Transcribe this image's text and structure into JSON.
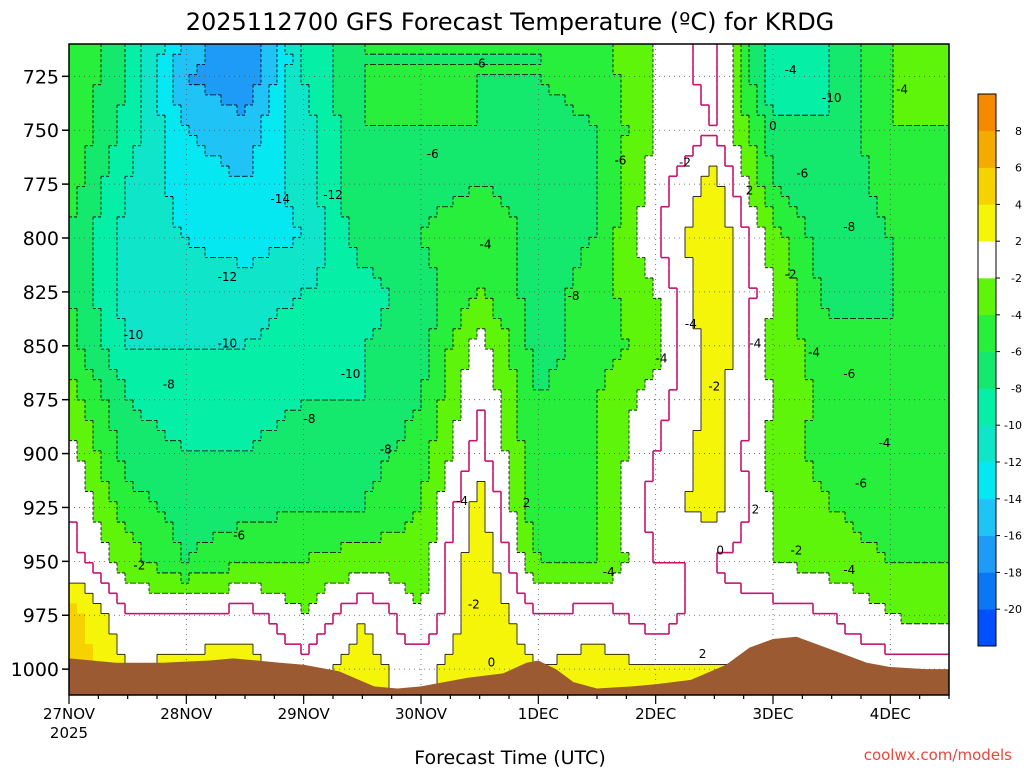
{
  "chart_data": {
    "type": "heatmap",
    "title": "2025112700 GFS Forecast Temperature (ºC) for KRDG",
    "xlabel": "Forecast Time (UTC)",
    "ylabel": "",
    "credit": "coolwx.com/models",
    "x_ticks": [
      "27NOV",
      "28NOV",
      "29NOV",
      "30NOV",
      "1DEC",
      "2DEC",
      "3DEC",
      "4DEC"
    ],
    "x_year": "2025",
    "x_range_days": [
      0,
      7.5
    ],
    "y_ticks": [
      725,
      750,
      775,
      800,
      825,
      850,
      875,
      900,
      925,
      950,
      975,
      1000
    ],
    "y_range_hpa": [
      1012,
      710
    ],
    "grid": true,
    "colorbar": {
      "levels": [
        -22,
        -20,
        -18,
        -16,
        -14,
        -12,
        -10,
        -8,
        -6,
        -4,
        -2,
        2,
        4,
        6,
        8,
        10
      ],
      "tick_labels": [
        "-20",
        "-18",
        "-16",
        "-14",
        "-12",
        "-10",
        "-8",
        "-6",
        "-4",
        "-2",
        "2",
        "4",
        "6",
        "8"
      ],
      "colors": [
        "#0050ff",
        "#0a78f5",
        "#1e9bf6",
        "#20c3f6",
        "#05e8f2",
        "#0fe6c9",
        "#05f0a6",
        "#14e86d",
        "#28ee3c",
        "#5ef50a",
        "#ffffff",
        "#f5f50a",
        "#f5d200",
        "#f5aa00",
        "#f58a00"
      ]
    },
    "temperature_grid": {
      "times_days": [
        0,
        0.5,
        1,
        1.5,
        2,
        2.5,
        3,
        3.5,
        4,
        4.5,
        5,
        5.5,
        6,
        6.5,
        7,
        7.5
      ],
      "levels_hpa": [
        715,
        725,
        750,
        775,
        800,
        825,
        850,
        875,
        900,
        925,
        950,
        975,
        1000
      ],
      "values_c": [
        [
          -4,
          -8,
          -15,
          -18,
          -10,
          -6,
          -6,
          -6,
          -6,
          -5,
          -2,
          1,
          -10,
          -8,
          -4,
          -4
        ],
        [
          -4,
          -8,
          -16,
          -18,
          -10,
          -6,
          -6,
          -6,
          -6,
          -5,
          -2,
          1,
          -10,
          -8,
          -4,
          -4
        ],
        [
          -4,
          -9,
          -14,
          -15,
          -11,
          -6,
          -6,
          -6,
          -7,
          -6,
          -2,
          0,
          -7,
          -8,
          -4,
          -4
        ],
        [
          -5,
          -10,
          -13,
          -14,
          -11,
          -6,
          -7,
          -6,
          -7,
          -6,
          -1,
          3,
          -6,
          -8,
          -5,
          -5
        ],
        [
          -6,
          -11,
          -12,
          -13,
          -12,
          -7,
          -6,
          -4,
          -7,
          -6,
          0,
          4,
          -3,
          -8,
          -6,
          -5
        ],
        [
          -6,
          -11,
          -11,
          -11,
          -10,
          -9,
          -7,
          -4,
          -7,
          -5,
          -2,
          4,
          -2,
          -7,
          -6,
          -5
        ],
        [
          -5,
          -10,
          -10,
          -10,
          -9,
          -8,
          -7,
          -1,
          -7,
          -5,
          -3,
          4,
          -3,
          -5,
          -6,
          -4
        ],
        [
          -3,
          -8,
          -9,
          -9,
          -8,
          -8,
          -6,
          0,
          -6,
          -4,
          -1,
          3,
          -2,
          -5,
          -6,
          -4
        ],
        [
          -1,
          -7,
          -8,
          -8,
          -7,
          -7,
          -5,
          1,
          -6,
          -4,
          0,
          3,
          -3,
          -5,
          -5,
          -4
        ],
        [
          0,
          -5,
          -7,
          -7,
          -6,
          -6,
          -4,
          3,
          -6,
          -4,
          1,
          3,
          -2,
          -4,
          -5,
          -4
        ],
        [
          1,
          -3,
          -6,
          -4,
          -4,
          -3,
          -3,
          4,
          -4,
          -4,
          0,
          0,
          -2,
          -3,
          -4,
          -4
        ],
        [
          5,
          0,
          0,
          1,
          -2,
          2,
          -2,
          4,
          0,
          1,
          -1,
          1,
          1,
          0,
          -2,
          -3
        ],
        [
          6,
          2,
          3,
          3,
          1,
          3,
          1,
          4,
          2,
          3,
          2,
          2,
          2,
          2,
          1,
          1
        ]
      ]
    },
    "surface_pressure_hpa": [
      [
        0,
        995
      ],
      [
        0.4,
        997
      ],
      [
        0.8,
        997
      ],
      [
        1.2,
        996
      ],
      [
        1.4,
        995
      ],
      [
        1.8,
        997
      ],
      [
        2.0,
        998
      ],
      [
        2.3,
        1001
      ],
      [
        2.6,
        1008
      ],
      [
        2.8,
        1009
      ],
      [
        3.0,
        1008
      ],
      [
        3.4,
        1004
      ],
      [
        3.7,
        1002
      ],
      [
        3.9,
        997
      ],
      [
        4.0,
        996
      ],
      [
        4.15,
        1000
      ],
      [
        4.3,
        1006
      ],
      [
        4.5,
        1009
      ],
      [
        4.8,
        1008
      ],
      [
        5.0,
        1007
      ],
      [
        5.3,
        1005
      ],
      [
        5.6,
        998
      ],
      [
        5.8,
        990
      ],
      [
        6.0,
        986
      ],
      [
        6.2,
        985
      ],
      [
        6.4,
        989
      ],
      [
        6.6,
        993
      ],
      [
        6.8,
        997
      ],
      [
        7.0,
        999
      ],
      [
        7.3,
        1000
      ],
      [
        7.5,
        1000
      ]
    ],
    "contour_labels": [
      {
        "x": 3.5,
        "y": 719,
        "t": "-6"
      },
      {
        "x": 6.15,
        "y": 722,
        "t": "-4"
      },
      {
        "x": 6.5,
        "y": 735,
        "t": "-10"
      },
      {
        "x": 7.1,
        "y": 731,
        "t": "-4"
      },
      {
        "x": 6.0,
        "y": 748,
        "t": "0"
      },
      {
        "x": 3.1,
        "y": 761,
        "t": "-6"
      },
      {
        "x": 4.7,
        "y": 764,
        "t": "-6"
      },
      {
        "x": 5.25,
        "y": 765,
        "t": "-2"
      },
      {
        "x": 6.25,
        "y": 770,
        "t": "-6"
      },
      {
        "x": 5.8,
        "y": 778,
        "t": "2"
      },
      {
        "x": 1.8,
        "y": 782,
        "t": "-14"
      },
      {
        "x": 2.25,
        "y": 780,
        "t": "-12"
      },
      {
        "x": 6.65,
        "y": 795,
        "t": "-8"
      },
      {
        "x": 3.55,
        "y": 803,
        "t": "-4"
      },
      {
        "x": 1.35,
        "y": 818,
        "t": "-12"
      },
      {
        "x": 6.15,
        "y": 817,
        "t": "-2"
      },
      {
        "x": 4.3,
        "y": 827,
        "t": "-8"
      },
      {
        "x": 0.55,
        "y": 845,
        "t": "-10"
      },
      {
        "x": 1.35,
        "y": 849,
        "t": "-10"
      },
      {
        "x": 5.3,
        "y": 840,
        "t": "-4"
      },
      {
        "x": 5.85,
        "y": 849,
        "t": "-4"
      },
      {
        "x": 5.05,
        "y": 856,
        "t": "-4"
      },
      {
        "x": 6.35,
        "y": 853,
        "t": "-4"
      },
      {
        "x": 2.4,
        "y": 863,
        "t": "-10"
      },
      {
        "x": 6.65,
        "y": 863,
        "t": "-6"
      },
      {
        "x": 0.85,
        "y": 868,
        "t": "-8"
      },
      {
        "x": 5.5,
        "y": 869,
        "t": "-2"
      },
      {
        "x": 2.05,
        "y": 884,
        "t": "-8"
      },
      {
        "x": 6.95,
        "y": 895,
        "t": "-4"
      },
      {
        "x": 2.7,
        "y": 898,
        "t": "-8"
      },
      {
        "x": 6.75,
        "y": 914,
        "t": "-6"
      },
      {
        "x": 3.35,
        "y": 922,
        "t": "-4"
      },
      {
        "x": 3.9,
        "y": 923,
        "t": "2"
      },
      {
        "x": 5.85,
        "y": 926,
        "t": "2"
      },
      {
        "x": 1.45,
        "y": 938,
        "t": "-6"
      },
      {
        "x": 5.55,
        "y": 945,
        "t": "0"
      },
      {
        "x": 6.2,
        "y": 945,
        "t": "-2"
      },
      {
        "x": 0.6,
        "y": 952,
        "t": "-2"
      },
      {
        "x": 4.6,
        "y": 955,
        "t": "-4"
      },
      {
        "x": 6.65,
        "y": 954,
        "t": "-4"
      },
      {
        "x": 3.45,
        "y": 970,
        "t": "-2"
      },
      {
        "x": 3.6,
        "y": 997,
        "t": "0"
      },
      {
        "x": 5.4,
        "y": 993,
        "t": "2"
      }
    ]
  }
}
